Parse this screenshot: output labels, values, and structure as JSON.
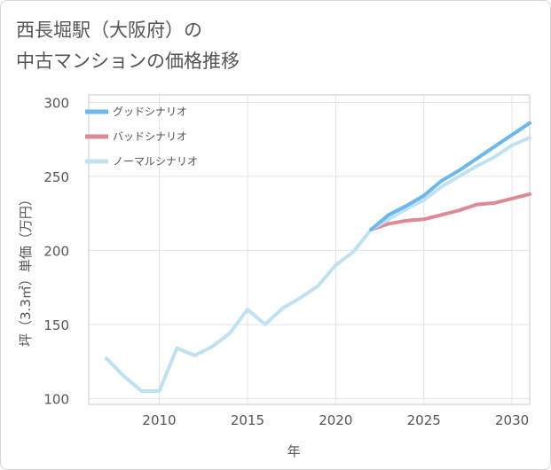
{
  "chart_data": {
    "type": "line",
    "title": "西長堀駅（大阪府）の\n中古マンションの価格推移",
    "title_lines": [
      "西長堀駅（大阪府）の",
      "中古マンションの価格推移"
    ],
    "xlabel": "年",
    "ylabel": "坪（3.3㎡）単価（万円）",
    "xlim": [
      2006,
      2031
    ],
    "ylim": [
      96,
      305
    ],
    "xticks": [
      2010,
      2015,
      2020,
      2025,
      2030
    ],
    "yticks": [
      100,
      150,
      200,
      250,
      300
    ],
    "grid": true,
    "legend_position": "top-left",
    "series": [
      {
        "name": "グッドシナリオ",
        "color": "#6cb8ec",
        "x": [
          2022,
          2023,
          2024,
          2025,
          2026,
          2027,
          2028,
          2029,
          2030,
          2031
        ],
        "y": [
          214,
          224,
          230,
          237,
          247,
          254,
          262,
          270,
          278,
          286
        ]
      },
      {
        "name": "バッドシナリオ",
        "color": "#dc8a93",
        "x": [
          2022,
          2023,
          2024,
          2025,
          2026,
          2027,
          2028,
          2029,
          2030,
          2031
        ],
        "y": [
          214,
          218,
          220,
          221,
          224,
          227,
          231,
          232,
          235,
          238
        ]
      },
      {
        "name": "ノーマルシナリオ",
        "color": "#bfe2f3",
        "x": [
          2007,
          2008,
          2009,
          2010,
          2011,
          2012,
          2013,
          2014,
          2015,
          2016,
          2017,
          2018,
          2019,
          2020,
          2021,
          2022,
          2023,
          2024,
          2025,
          2026,
          2027,
          2028,
          2029,
          2030,
          2031
        ],
        "y": [
          127,
          115,
          105,
          105,
          134,
          129,
          135,
          144,
          160,
          150,
          161,
          168,
          176,
          190,
          199,
          214,
          221,
          228,
          234,
          243,
          250,
          257,
          263,
          271,
          276
        ]
      }
    ]
  }
}
